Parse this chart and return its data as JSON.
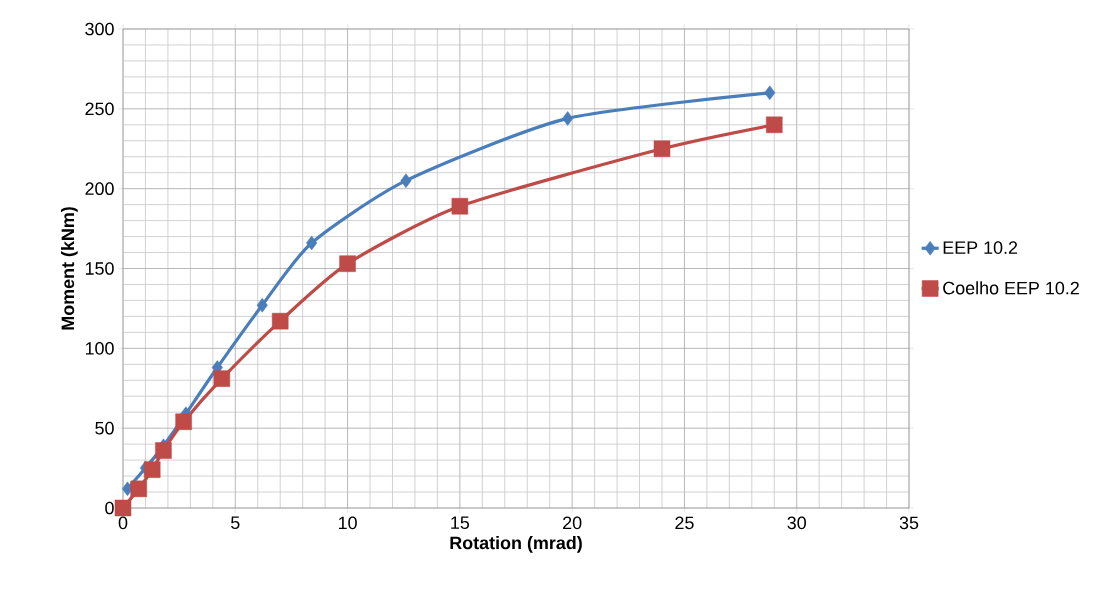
{
  "chart_data": {
    "type": "line",
    "xlabel": "Rotation (mrad)",
    "ylabel": "Moment (kNm)",
    "xlim": [
      0,
      35
    ],
    "xticks": [
      0,
      5,
      10,
      15,
      20,
      25,
      30,
      35
    ],
    "ylim": [
      0,
      300
    ],
    "yticks": [
      0,
      50,
      100,
      150,
      200,
      250,
      300
    ],
    "grid": true,
    "legend": "right",
    "series": [
      {
        "name": "EEP 10.2",
        "color": "#4a7ebb",
        "marker": "diamond",
        "x": [
          0.2,
          1,
          1.8,
          2.8,
          4.2,
          6.2,
          8.4,
          12.6,
          19.8,
          28.8
        ],
        "values": [
          12,
          25,
          39,
          59,
          88,
          127,
          166,
          205,
          244,
          260
        ]
      },
      {
        "name": "Coelho EEP 10.2",
        "color": "#be4b48",
        "marker": "square",
        "x": [
          0,
          0.7,
          1.3,
          1.8,
          2.7,
          4.4,
          7,
          10,
          15,
          24,
          29
        ],
        "values": [
          0,
          12,
          24,
          36,
          54,
          81,
          117,
          153,
          189,
          225,
          240
        ]
      }
    ]
  }
}
